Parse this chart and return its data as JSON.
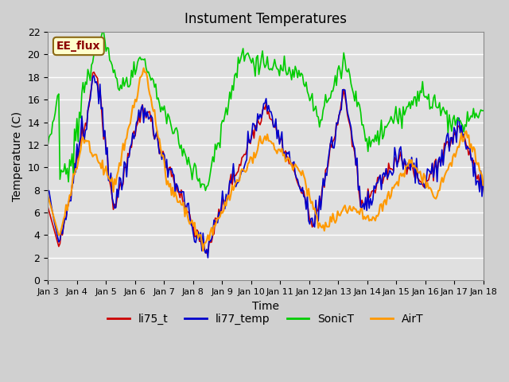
{
  "title": "Instument Temperatures",
  "xlabel": "Time",
  "ylabel": "Temperature (C)",
  "ylim": [
    0,
    22
  ],
  "xlim": [
    0,
    360
  ],
  "bg_color": "#d0d0d0",
  "plot_bg_color": "#e0e0e0",
  "grid_color": "white",
  "line_colors": {
    "li75_t": "#cc0000",
    "li77_temp": "#0000cc",
    "SonicT": "#00cc00",
    "AirT": "#ff9900"
  },
  "xtick_labels": [
    "Jan 3",
    "Jan 4",
    "Jan 5",
    "Jan 6",
    "Jan 7",
    "Jan 8",
    "Jan 9",
    "Jan 10",
    "Jan 11",
    "Jan 12",
    "Jan 13",
    "Jan 14",
    "Jan 15",
    "Jan 16",
    "Jan 17",
    "Jan 18"
  ],
  "annotation_text": "EE_flux",
  "annotation_color": "#8b0000",
  "annotation_bg": "#ffffcc",
  "legend_entries": [
    "li75_t",
    "li77_temp",
    "SonicT",
    "AirT"
  ]
}
